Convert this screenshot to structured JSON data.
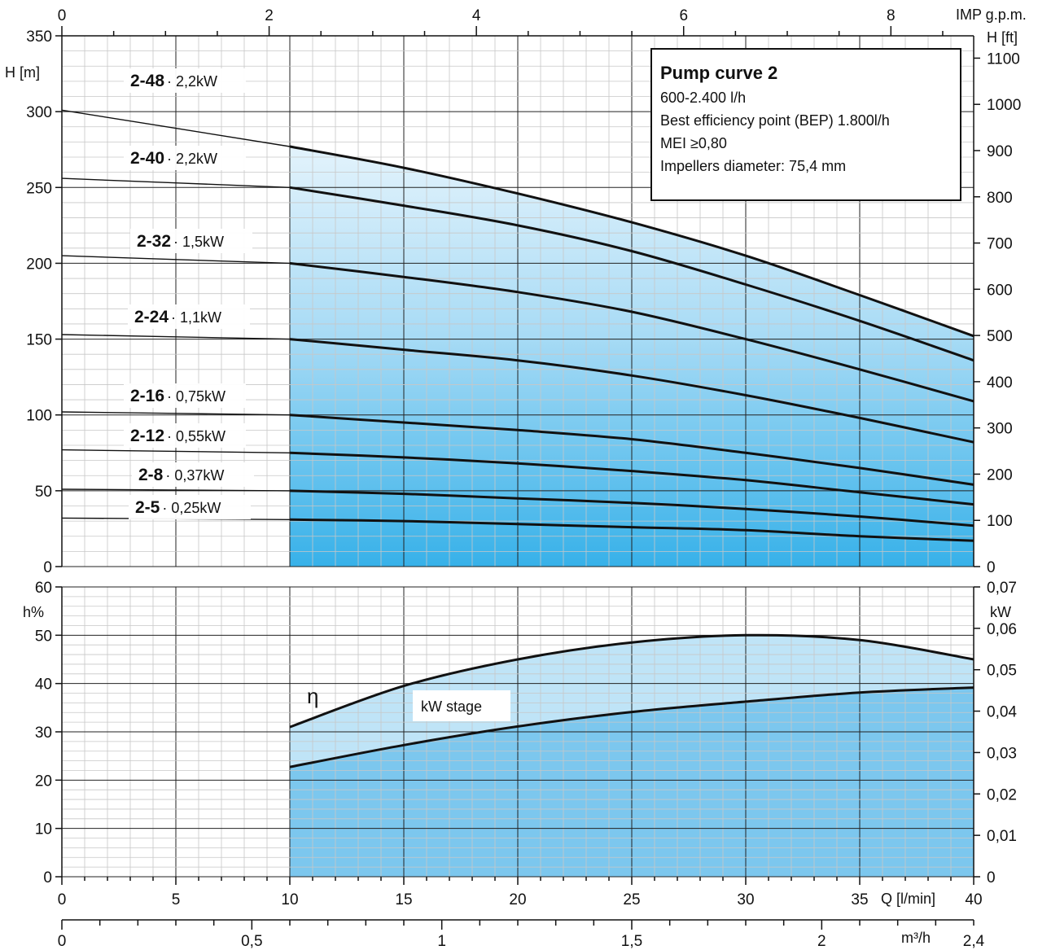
{
  "chart_data": [
    {
      "type": "line",
      "title": "Pump curve 2",
      "ylabel": "H [m]",
      "ylim": [
        0,
        350
      ],
      "xlabel": "Q [l/min]",
      "xlim": [
        0,
        40
      ],
      "grid": true,
      "secondary_axes": {
        "top_label": "IMP g.p.m.",
        "top_ticks": [
          "0",
          "2",
          "4",
          "6",
          "8"
        ],
        "right_label": "H [ft]",
        "right_ticks": [
          "0",
          "100",
          "200",
          "300",
          "400",
          "500",
          "600",
          "700",
          "800",
          "900",
          "1000",
          "1100"
        ]
      },
      "y_ticks": [
        "0",
        "50",
        "100",
        "150",
        "200",
        "250",
        "300",
        "350"
      ],
      "info_box": {
        "title": "Pump curve 2",
        "lines": [
          "600-2.400 l/h",
          "Best efficiency point (BEP) 1.800l/h",
          "MEI ≥0,80",
          "Impellers diameter: 75,4 mm"
        ]
      },
      "series": [
        {
          "model": "2-48",
          "power": "· 2,2kW",
          "x": [
            0,
            10,
            15,
            20,
            25,
            30,
            35,
            40
          ],
          "values": [
            301,
            277,
            263,
            246,
            227,
            205,
            179,
            152
          ]
        },
        {
          "model": "2-40",
          "power": "· 2,2kW",
          "x": [
            0,
            10,
            15,
            20,
            25,
            30,
            35,
            40
          ],
          "values": [
            256,
            250,
            238,
            225,
            208,
            186,
            162,
            136
          ]
        },
        {
          "model": "2-32",
          "power": "· 1,5kW",
          "x": [
            0,
            10,
            15,
            20,
            25,
            30,
            35,
            40
          ],
          "values": [
            205,
            200,
            191,
            181,
            168,
            150,
            130,
            109
          ]
        },
        {
          "model": "2-24",
          "power": "· 1,1kW",
          "x": [
            0,
            10,
            15,
            20,
            25,
            30,
            35,
            40
          ],
          "values": [
            153,
            150,
            143,
            136,
            126,
            113,
            98,
            82
          ]
        },
        {
          "model": "2-16",
          "power": "· 0,75kW",
          "x": [
            0,
            10,
            15,
            20,
            25,
            30,
            35,
            40
          ],
          "values": [
            102,
            100,
            95,
            90,
            84,
            75,
            65,
            54
          ]
        },
        {
          "model": "2-12",
          "power": "· 0,55kW",
          "x": [
            0,
            10,
            15,
            20,
            25,
            30,
            35,
            40
          ],
          "values": [
            77,
            75,
            72,
            68,
            63,
            57,
            49,
            41
          ]
        },
        {
          "model": "2-8",
          "power": "· 0,37kW",
          "x": [
            0,
            10,
            15,
            20,
            25,
            30,
            35,
            40
          ],
          "values": [
            51,
            50,
            48,
            45,
            42,
            38,
            33,
            27
          ]
        },
        {
          "model": "2-5",
          "power": "· 0,25kW",
          "x": [
            0,
            10,
            15,
            20,
            25,
            30,
            35,
            40
          ],
          "values": [
            32,
            31,
            30,
            28,
            26,
            24,
            20,
            17
          ]
        }
      ]
    },
    {
      "type": "line",
      "ylabel": "h%",
      "ylim": [
        0,
        60
      ],
      "y_ticks": [
        "0",
        "10",
        "20",
        "30",
        "40",
        "50",
        "60"
      ],
      "right_label": "kW",
      "right_ticks": [
        "0",
        "0,01",
        "0,02",
        "0,03",
        "0,04",
        "0,05",
        "0,06",
        "0,07"
      ],
      "xlabel": "Q [l/min]",
      "x_ticks": [
        "0",
        "5",
        "10",
        "15",
        "20",
        "25",
        "30",
        "35",
        "40"
      ],
      "bottom_label": "m³/h",
      "bottom_ticks": [
        "0",
        "0,5",
        "1",
        "1,5",
        "2",
        "2,4"
      ],
      "efficiency_symbol": "η",
      "kw_label": "kW stage",
      "series": [
        {
          "role": "efficiency",
          "x": [
            10,
            15,
            20,
            25,
            30,
            35,
            40
          ],
          "values": [
            31,
            39.5,
            45,
            48.5,
            50,
            49,
            45
          ]
        },
        {
          "role": "kw_stage",
          "x": [
            10,
            15,
            20,
            25,
            30,
            35,
            40
          ],
          "values": [
            0.0265,
            0.0318,
            0.0363,
            0.0398,
            0.0423,
            0.0445,
            0.0457
          ]
        }
      ]
    }
  ],
  "colors": {
    "fill_top": "#dbeffa",
    "fill_mid": "#8fd0f2",
    "fill_bottom": "#3db4ea",
    "efficiency_fill": "#bfe4f7",
    "kw_fill": "#7cc7ee"
  }
}
